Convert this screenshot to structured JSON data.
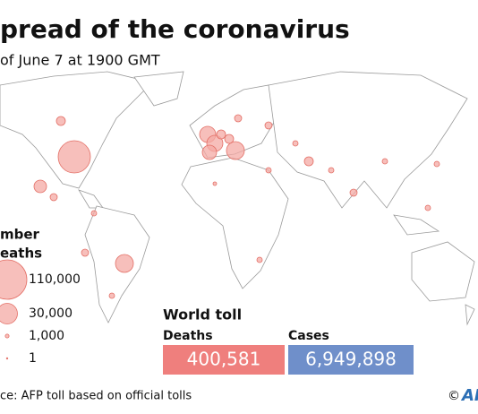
{
  "header": {
    "title": "pread of the coronavirus",
    "subtitle": "of June 7 at 1900 GMT"
  },
  "legend": {
    "title_lines": [
      "mber",
      "eaths"
    ],
    "sizes": [
      {
        "value": 110000,
        "label": "110,000"
      },
      {
        "value": 30000,
        "label": "30,000"
      },
      {
        "value": 1000,
        "label": "1,000"
      },
      {
        "value": 1,
        "label": "1"
      }
    ]
  },
  "world_toll": {
    "title": "World toll",
    "deaths_label": "Deaths",
    "deaths": "400,581",
    "cases_label": "Cases",
    "cases": "6,949,898"
  },
  "footer": {
    "source": "ce: AFP toll based on official tolls",
    "copyright": "©",
    "logo": "AF"
  }
}
